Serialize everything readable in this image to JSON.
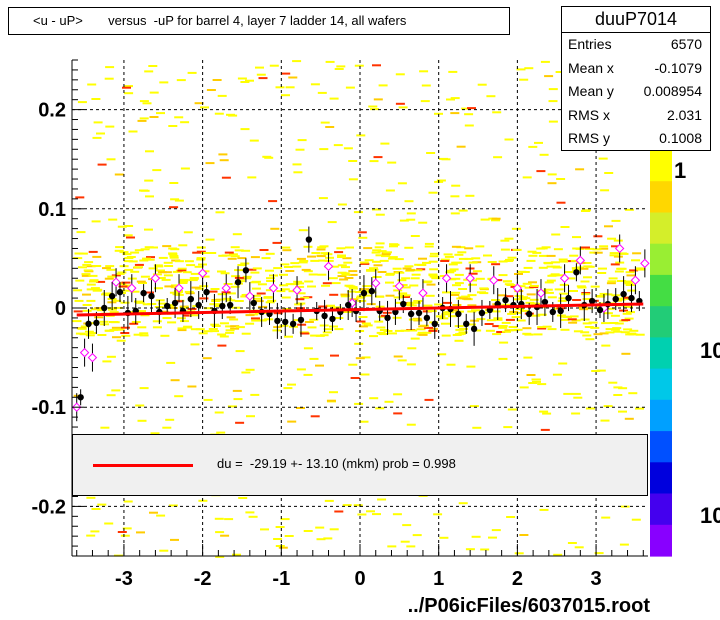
{
  "title": "<u - uP>       versus  -uP for barrel 4, layer 7 ladder 14, all wafers",
  "stats": {
    "name": "duuP7014",
    "rows": [
      {
        "label": "Entries",
        "value": "6570"
      },
      {
        "label": "Mean x",
        "value": "-0.1079"
      },
      {
        "label": "Mean y",
        "value": "0.008954"
      },
      {
        "label": "RMS x",
        "value": "2.031"
      },
      {
        "label": "RMS y",
        "value": "0.1008"
      }
    ]
  },
  "legend": {
    "text": "du =  -29.19 +- 13.10 (mkm) prob = 0.998",
    "color": "#ff0000"
  },
  "footer": "../P06icFiles/6037015.root",
  "palette_labels": [
    "1",
    "10",
    "10"
  ],
  "colors": {
    "fill_yellow": "#ffff00",
    "fill_orange": "#ffcc00",
    "fill_red": "#ff3300",
    "points": "#000000",
    "open_points": "#ff00ff",
    "fit": "#ff0000"
  },
  "chart_data": {
    "type": "scatter",
    "xlim": [
      -3.66,
      3.66
    ],
    "ylim": [
      -0.25,
      0.25
    ],
    "x_ticks": [
      "-3",
      "-2",
      "-1",
      "0",
      "1",
      "2",
      "3"
    ],
    "y_ticks": [
      "-0.2",
      "-0.1",
      "0",
      "0.1",
      "0.2"
    ],
    "grid": true,
    "fit_line": {
      "x": [
        -3.6,
        3.6
      ],
      "y": [
        -0.007,
        0.004
      ]
    },
    "profile_points": {
      "x": [
        -3.55,
        -3.45,
        -3.35,
        -3.25,
        -3.15,
        -3.05,
        -2.95,
        -2.85,
        -2.75,
        -2.65,
        -2.55,
        -2.45,
        -2.35,
        -2.25,
        -2.15,
        -2.05,
        -1.95,
        -1.85,
        -1.75,
        -1.65,
        -1.55,
        -1.45,
        -1.35,
        -1.25,
        -1.15,
        -1.05,
        -0.95,
        -0.85,
        -0.75,
        -0.65,
        -0.55,
        -0.45,
        -0.35,
        -0.25,
        -0.15,
        -0.05,
        0.05,
        0.15,
        0.25,
        0.35,
        0.45,
        0.55,
        0.65,
        0.75,
        0.85,
        0.95,
        1.05,
        1.15,
        1.25,
        1.35,
        1.45,
        1.55,
        1.65,
        1.75,
        1.85,
        1.95,
        2.05,
        2.15,
        2.25,
        2.35,
        2.45,
        2.55,
        2.65,
        2.75,
        2.85,
        2.95,
        3.05,
        3.15,
        3.25,
        3.35,
        3.45,
        3.55
      ],
      "y": [
        -0.09,
        -0.016,
        -0.015,
        0.0,
        0.012,
        0.016,
        -0.005,
        -0.003,
        0.015,
        0.012,
        -0.004,
        0.002,
        0.005,
        -0.003,
        0.009,
        0.003,
        0.016,
        -0.003,
        0.002,
        0.003,
        0.026,
        0.038,
        0.005,
        -0.004,
        -0.006,
        -0.013,
        -0.014,
        -0.016,
        -0.012,
        0.069,
        -0.003,
        -0.008,
        -0.011,
        -0.004,
        0.003,
        -0.003,
        0.015,
        0.017,
        -0.003,
        -0.01,
        -0.004,
        0.004,
        -0.006,
        -0.005,
        -0.01,
        -0.016,
        0.0,
        -0.001,
        -0.006,
        -0.016,
        -0.021,
        -0.005,
        -0.002,
        0.004,
        0.008,
        0.003,
        0.004,
        -0.006,
        0.001,
        0.006,
        -0.004,
        -0.003,
        0.01,
        0.036,
        0.003,
        0.007,
        -0.002,
        0.004,
        0.009,
        0.014,
        0.01,
        0.007
      ]
    },
    "open_points": {
      "x": [
        -3.6,
        -3.5,
        -3.4,
        -3.1,
        -2.9,
        -2.6,
        -2.3,
        -2.0,
        -1.7,
        -1.4,
        -1.1,
        -0.8,
        -0.4,
        -0.1,
        0.2,
        0.5,
        0.8,
        1.1,
        1.4,
        1.7,
        2.0,
        2.3,
        2.6,
        2.8,
        3.1,
        3.3,
        3.5,
        3.62
      ],
      "y": [
        -0.1,
        -0.045,
        -0.05,
        0.026,
        0.02,
        0.03,
        0.02,
        0.035,
        0.02,
        0.012,
        0.02,
        0.018,
        0.042,
        0.005,
        0.025,
        0.022,
        0.015,
        0.03,
        0.03,
        0.028,
        0.02,
        0.015,
        0.03,
        0.048,
        0.0,
        0.06,
        0.028,
        0.045
      ]
    }
  }
}
